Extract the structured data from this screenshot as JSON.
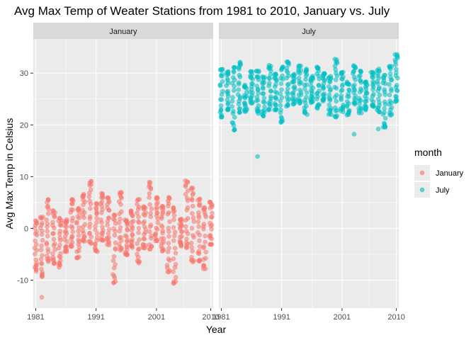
{
  "chart_data": {
    "type": "scatter",
    "title": "Avg Max Temp of Weater Stations from 1981 to 2010, January vs. July",
    "xlabel": "Year",
    "ylabel": "Avg Max Temp in Celsius",
    "facets": [
      "January",
      "July"
    ],
    "x_ticks": [
      "1981",
      "1991",
      "2001",
      "2010"
    ],
    "y_ticks": [
      "-10",
      "0",
      "10",
      "20",
      "30"
    ],
    "xlim": [
      1980.6,
      2010.4
    ],
    "ylim": [
      -15.4,
      36.6
    ],
    "grid": true,
    "legend": {
      "title": "month",
      "position": "right",
      "entries": [
        {
          "label": "January",
          "color": "#F8766D"
        },
        {
          "label": "July",
          "color": "#00BFC4"
        }
      ]
    },
    "colors": {
      "January": "#F8766D",
      "July": "#00BFC4"
    },
    "series": [
      {
        "name": "January",
        "description_note": "",
        "years": [
          1981,
          1982,
          1983,
          1984,
          1985,
          1986,
          1987,
          1988,
          1989,
          1990,
          1991,
          1992,
          1993,
          1994,
          1995,
          1996,
          1997,
          1998,
          1999,
          2000,
          2001,
          2002,
          2003,
          2004,
          2005,
          2006,
          2007,
          2008,
          2009,
          2010
        ],
        "ymin": [
          -8.3,
          -9.3,
          -6.4,
          -6.8,
          -7.5,
          -4.8,
          -3.5,
          -5.7,
          -2.5,
          -2.9,
          -4.5,
          -2.3,
          -3.2,
          -10.5,
          -4.2,
          -5.3,
          -3.7,
          -6.7,
          -3.8,
          -4.0,
          -2.4,
          -4.4,
          -8.4,
          -10.6,
          -3.4,
          -3.7,
          -6.5,
          -6.3,
          -7.8,
          -3.1
        ],
        "ymax": [
          1.5,
          2.2,
          5.6,
          3.4,
          2.0,
          1.7,
          5.6,
          3.9,
          6.7,
          9.1,
          4.8,
          6.9,
          6.0,
          2.6,
          7.2,
          1.7,
          3.4,
          5.6,
          4.2,
          9.0,
          6.0,
          4.3,
          6.0,
          4.2,
          1.8,
          9.2,
          7.8,
          5.7,
          4.2,
          5.1
        ],
        "outliers": [
          [
            1982,
            -13.3
          ]
        ]
      },
      {
        "name": "July",
        "years": [
          1981,
          1982,
          1983,
          1984,
          1985,
          1986,
          1987,
          1988,
          1989,
          1990,
          1991,
          1992,
          1993,
          1994,
          1995,
          1996,
          1997,
          1998,
          1999,
          2000,
          2001,
          2002,
          2003,
          2004,
          2005,
          2006,
          2007,
          2008,
          2009,
          2010
        ],
        "ymin": [
          21.5,
          22.9,
          19.0,
          22.4,
          22.6,
          24.2,
          22.2,
          21.7,
          22.9,
          22.9,
          20.3,
          23.6,
          24.0,
          24.2,
          22.0,
          24.2,
          23.2,
          24.6,
          22.0,
          21.5,
          22.5,
          21.9,
          24.0,
          22.3,
          22.8,
          23.4,
          22.5,
          19.2,
          21.9,
          24.5
        ],
        "ymax": [
          31.0,
          30.3,
          31.1,
          32.3,
          27.7,
          30.3,
          30.4,
          29.3,
          31.5,
          30.0,
          31.2,
          32.2,
          29.8,
          31.4,
          30.8,
          29.5,
          31.2,
          29.9,
          29.4,
          32.7,
          30.5,
          28.3,
          31.6,
          30.4,
          28.3,
          30.2,
          30.8,
          29.6,
          31.3,
          33.6
        ],
        "outliers": [
          [
            1987,
            13.9
          ],
          [
            2003,
            18.2
          ],
          [
            2007,
            19.2
          ]
        ]
      }
    ]
  }
}
